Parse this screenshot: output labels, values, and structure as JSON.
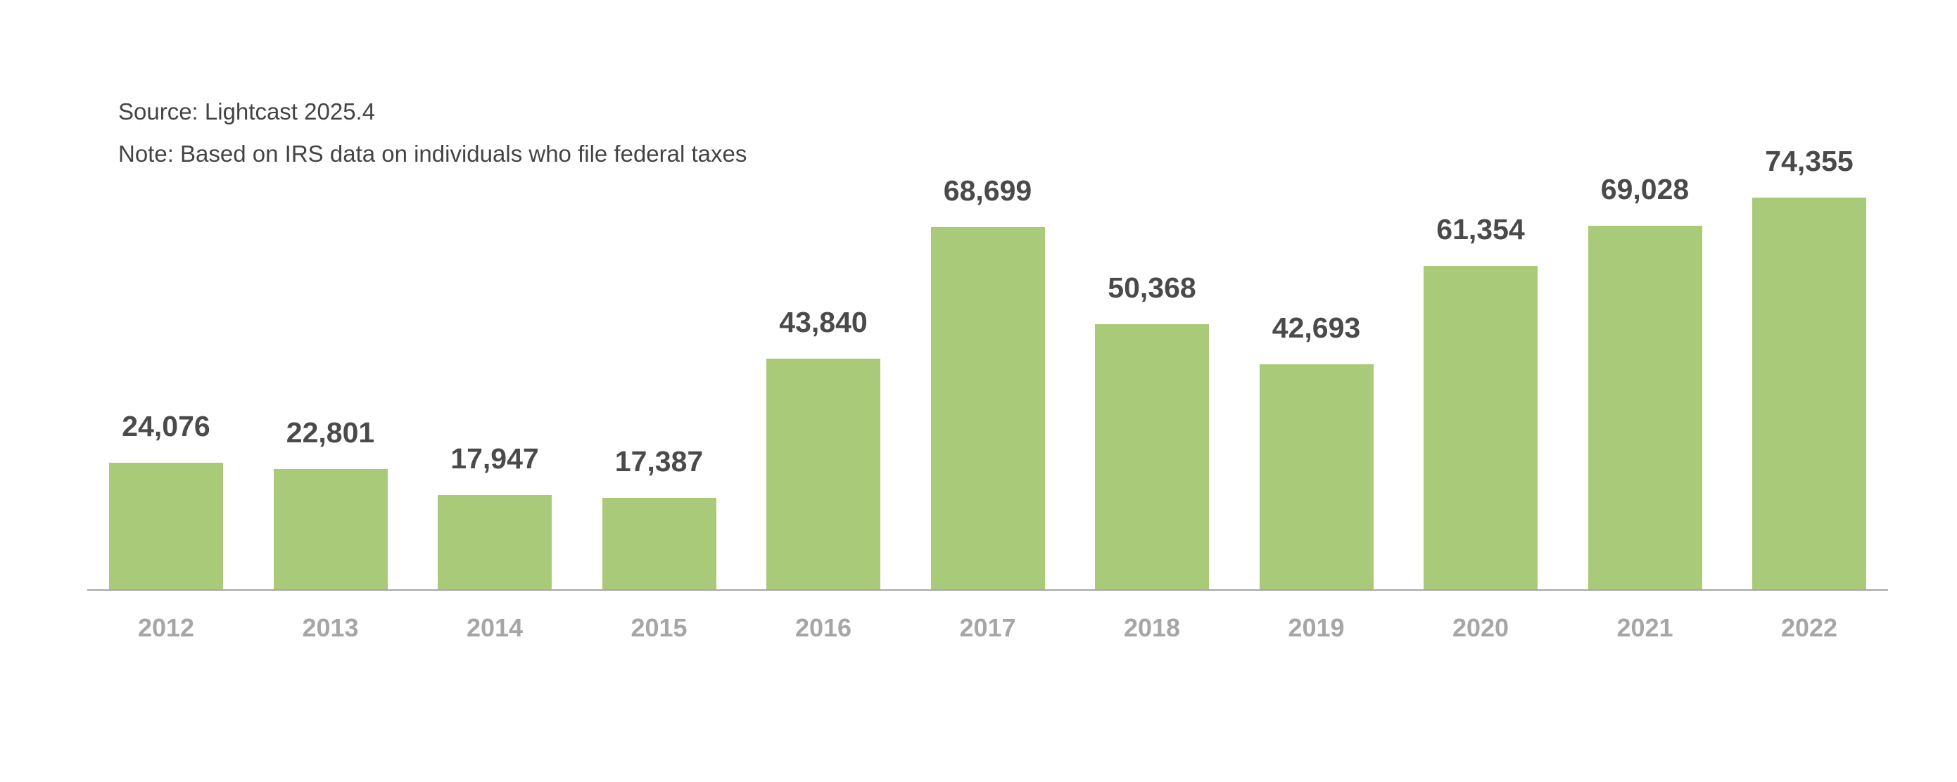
{
  "header": {
    "source": "Source: Lightcast 2025.4",
    "note": "Note: Based on IRS data on individuals who file federal taxes"
  },
  "colors": {
    "bar": "#a9ca79",
    "value_label": "#4a4a4a",
    "axis_label": "#a6a6a6",
    "axis_line": "#a6a6a6"
  },
  "chart_data": {
    "type": "bar",
    "title": "",
    "xlabel": "",
    "ylabel": "",
    "categories": [
      "2012",
      "2013",
      "2014",
      "2015",
      "2016",
      "2017",
      "2018",
      "2019",
      "2020",
      "2021",
      "2022"
    ],
    "values": [
      24076,
      22801,
      17947,
      17387,
      43840,
      68699,
      50368,
      42693,
      61354,
      69028,
      74355
    ],
    "value_labels": [
      "24,076",
      "22,801",
      "17,947",
      "17,387",
      "43,840",
      "68,699",
      "50,368",
      "42,693",
      "61,354",
      "69,028",
      "74,355"
    ],
    "ylim": [
      0,
      74355
    ],
    "grid": false,
    "legend": "none",
    "annotations": [
      "Source: Lightcast 2025.4",
      "Note: Based on IRS data on individuals who file federal taxes"
    ]
  }
}
